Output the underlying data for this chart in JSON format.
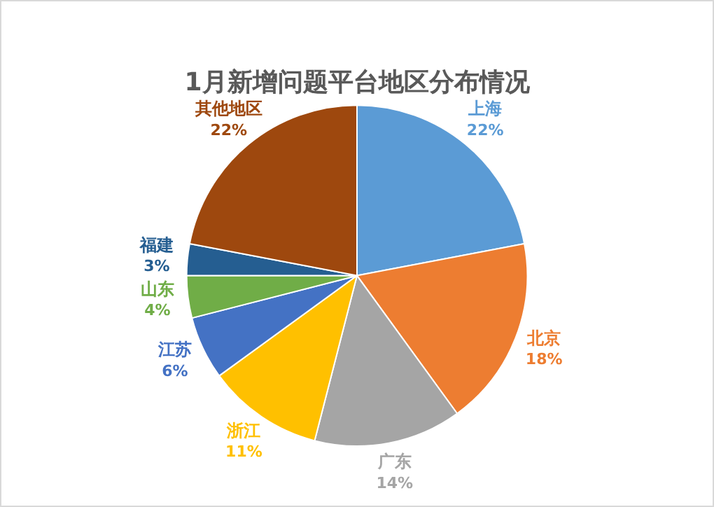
{
  "chart_data": {
    "type": "pie",
    "title": "1月新增问题平台地区分布情况",
    "categories": [
      "上海",
      "北京",
      "广东",
      "浙江",
      "江苏",
      "山东",
      "福建",
      "其他地区"
    ],
    "values": [
      22,
      18,
      14,
      11,
      6,
      4,
      3,
      22
    ],
    "value_labels": [
      "22%",
      "18%",
      "14%",
      "11%",
      "6%",
      "4%",
      "3%",
      "22%"
    ],
    "colors": [
      "#5b9bd5",
      "#ed7d31",
      "#a5a5a5",
      "#ffc000",
      "#4472c4",
      "#70ad47",
      "#255e91",
      "#9e480e"
    ],
    "legend": false
  }
}
